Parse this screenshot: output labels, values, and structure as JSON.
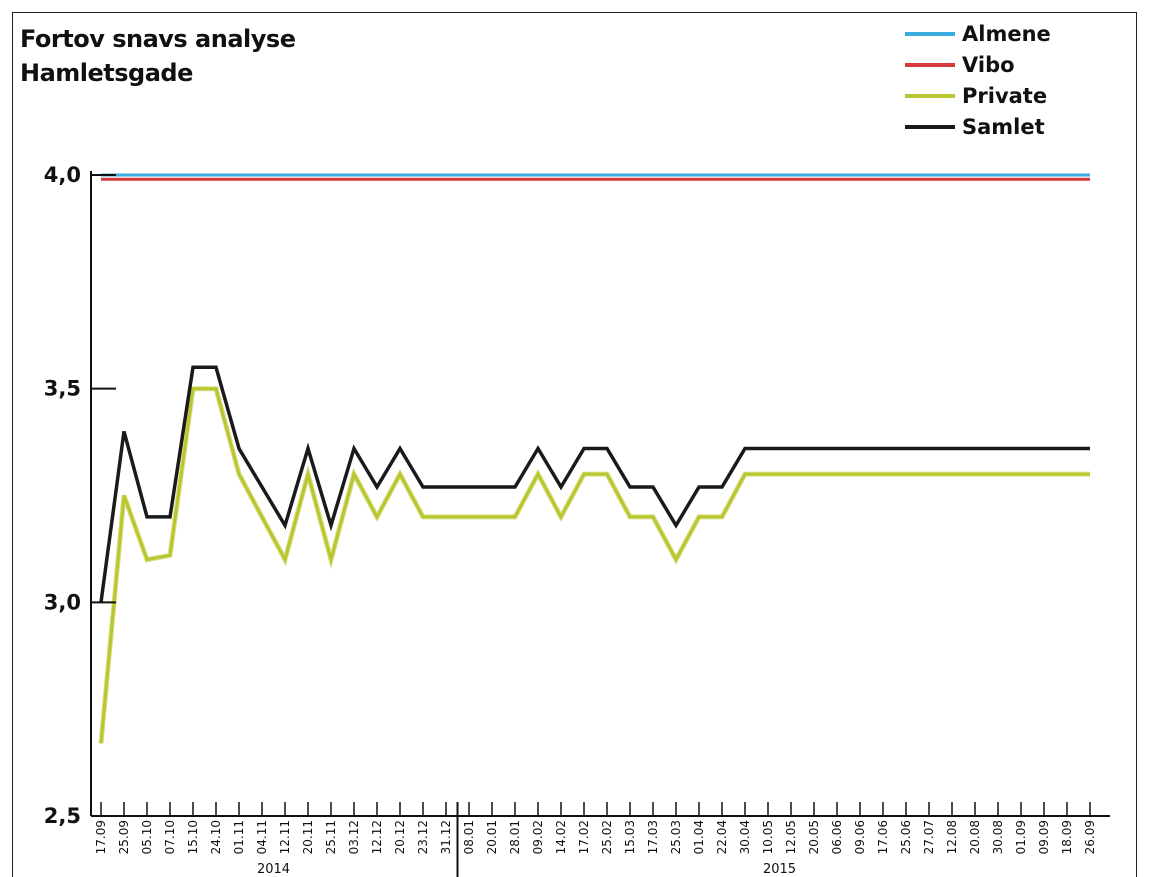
{
  "chart_data": {
    "type": "line",
    "title": "Fortov snavs analyse",
    "subtitle": "Hamletsgade",
    "xlabel": "",
    "ylabel": "",
    "ylim": [
      2.5,
      4.0
    ],
    "yticks": [
      "2,5",
      "3,0",
      "3,5",
      "4,0"
    ],
    "ytick_values": [
      2.5,
      3.0,
      3.5,
      4.0
    ],
    "grid": false,
    "legend_position": "top-right",
    "x": [
      "17.09",
      "25.09",
      "05.10",
      "07.10",
      "15.10",
      "24.10",
      "01.11",
      "04.11",
      "12.11",
      "20.11",
      "25.11",
      "03.12",
      "12.12",
      "20.12",
      "23.12",
      "31.12",
      "08.01",
      "20.01",
      "28.01",
      "09.02",
      "14.02",
      "17.02",
      "25.02",
      "15.03",
      "17.03",
      "25.03",
      "01.04",
      "22.04",
      "30.04",
      "10.05",
      "12.05",
      "20.05",
      "06.06",
      "09.06",
      "17.06",
      "25.06",
      "27.07",
      "12.08",
      "20.08",
      "30.08",
      "01.09",
      "09.09",
      "18.09",
      "26.09"
    ],
    "year_groups": [
      {
        "label": "2014",
        "from": 0,
        "to": 15
      },
      {
        "label": "2015",
        "from": 16,
        "to": 43
      }
    ],
    "series": [
      {
        "name": "Almene",
        "color": "#3aaee0",
        "values": [
          4.0,
          4.0,
          4.0,
          4.0,
          4.0,
          4.0,
          4.0,
          4.0,
          4.0,
          4.0,
          4.0,
          4.0,
          4.0,
          4.0,
          4.0,
          4.0,
          4.0,
          4.0,
          4.0,
          4.0,
          4.0,
          4.0,
          4.0,
          4.0,
          4.0,
          4.0,
          4.0,
          4.0,
          4.0,
          4.0,
          4.0,
          4.0,
          4.0,
          4.0,
          4.0,
          4.0,
          4.0,
          4.0,
          4.0,
          4.0,
          4.0,
          4.0,
          4.0,
          4.0
        ]
      },
      {
        "name": "Vibo",
        "color": "#d63a3e",
        "values": [
          3.99,
          3.99,
          3.99,
          3.99,
          3.99,
          3.99,
          3.99,
          3.99,
          3.99,
          3.99,
          3.99,
          3.99,
          3.99,
          3.99,
          3.99,
          3.99,
          3.99,
          3.99,
          3.99,
          3.99,
          3.99,
          3.99,
          3.99,
          3.99,
          3.99,
          3.99,
          3.99,
          3.99,
          3.99,
          3.99,
          3.99,
          3.99,
          3.99,
          3.99,
          3.99,
          3.99,
          3.99,
          3.99,
          3.99,
          3.99,
          3.99,
          3.99,
          3.99,
          3.99
        ]
      },
      {
        "name": "Private",
        "color": "#b9c62e",
        "values": [
          2.67,
          3.25,
          3.1,
          3.11,
          3.5,
          3.5,
          3.3,
          3.2,
          3.1,
          3.3,
          3.1,
          3.3,
          3.2,
          3.3,
          3.2,
          3.2,
          3.2,
          3.2,
          3.2,
          3.3,
          3.2,
          3.3,
          3.3,
          3.2,
          3.2,
          3.1,
          3.2,
          3.2,
          3.3,
          3.3,
          3.3,
          3.3,
          3.3,
          3.3,
          3.3,
          3.3,
          3.3,
          3.3,
          3.3,
          3.3,
          3.3,
          3.3,
          3.3,
          3.3
        ]
      },
      {
        "name": "Samlet",
        "color": "#1a1a1a",
        "values": [
          3.0,
          3.4,
          3.2,
          3.2,
          3.55,
          3.55,
          3.36,
          3.27,
          3.18,
          3.36,
          3.18,
          3.36,
          3.27,
          3.36,
          3.27,
          3.27,
          3.27,
          3.27,
          3.27,
          3.36,
          3.27,
          3.36,
          3.36,
          3.27,
          3.27,
          3.18,
          3.27,
          3.27,
          3.36,
          3.36,
          3.36,
          3.36,
          3.36,
          3.36,
          3.36,
          3.36,
          3.36,
          3.36,
          3.36,
          3.36,
          3.36,
          3.36,
          3.36,
          3.36
        ]
      }
    ]
  }
}
